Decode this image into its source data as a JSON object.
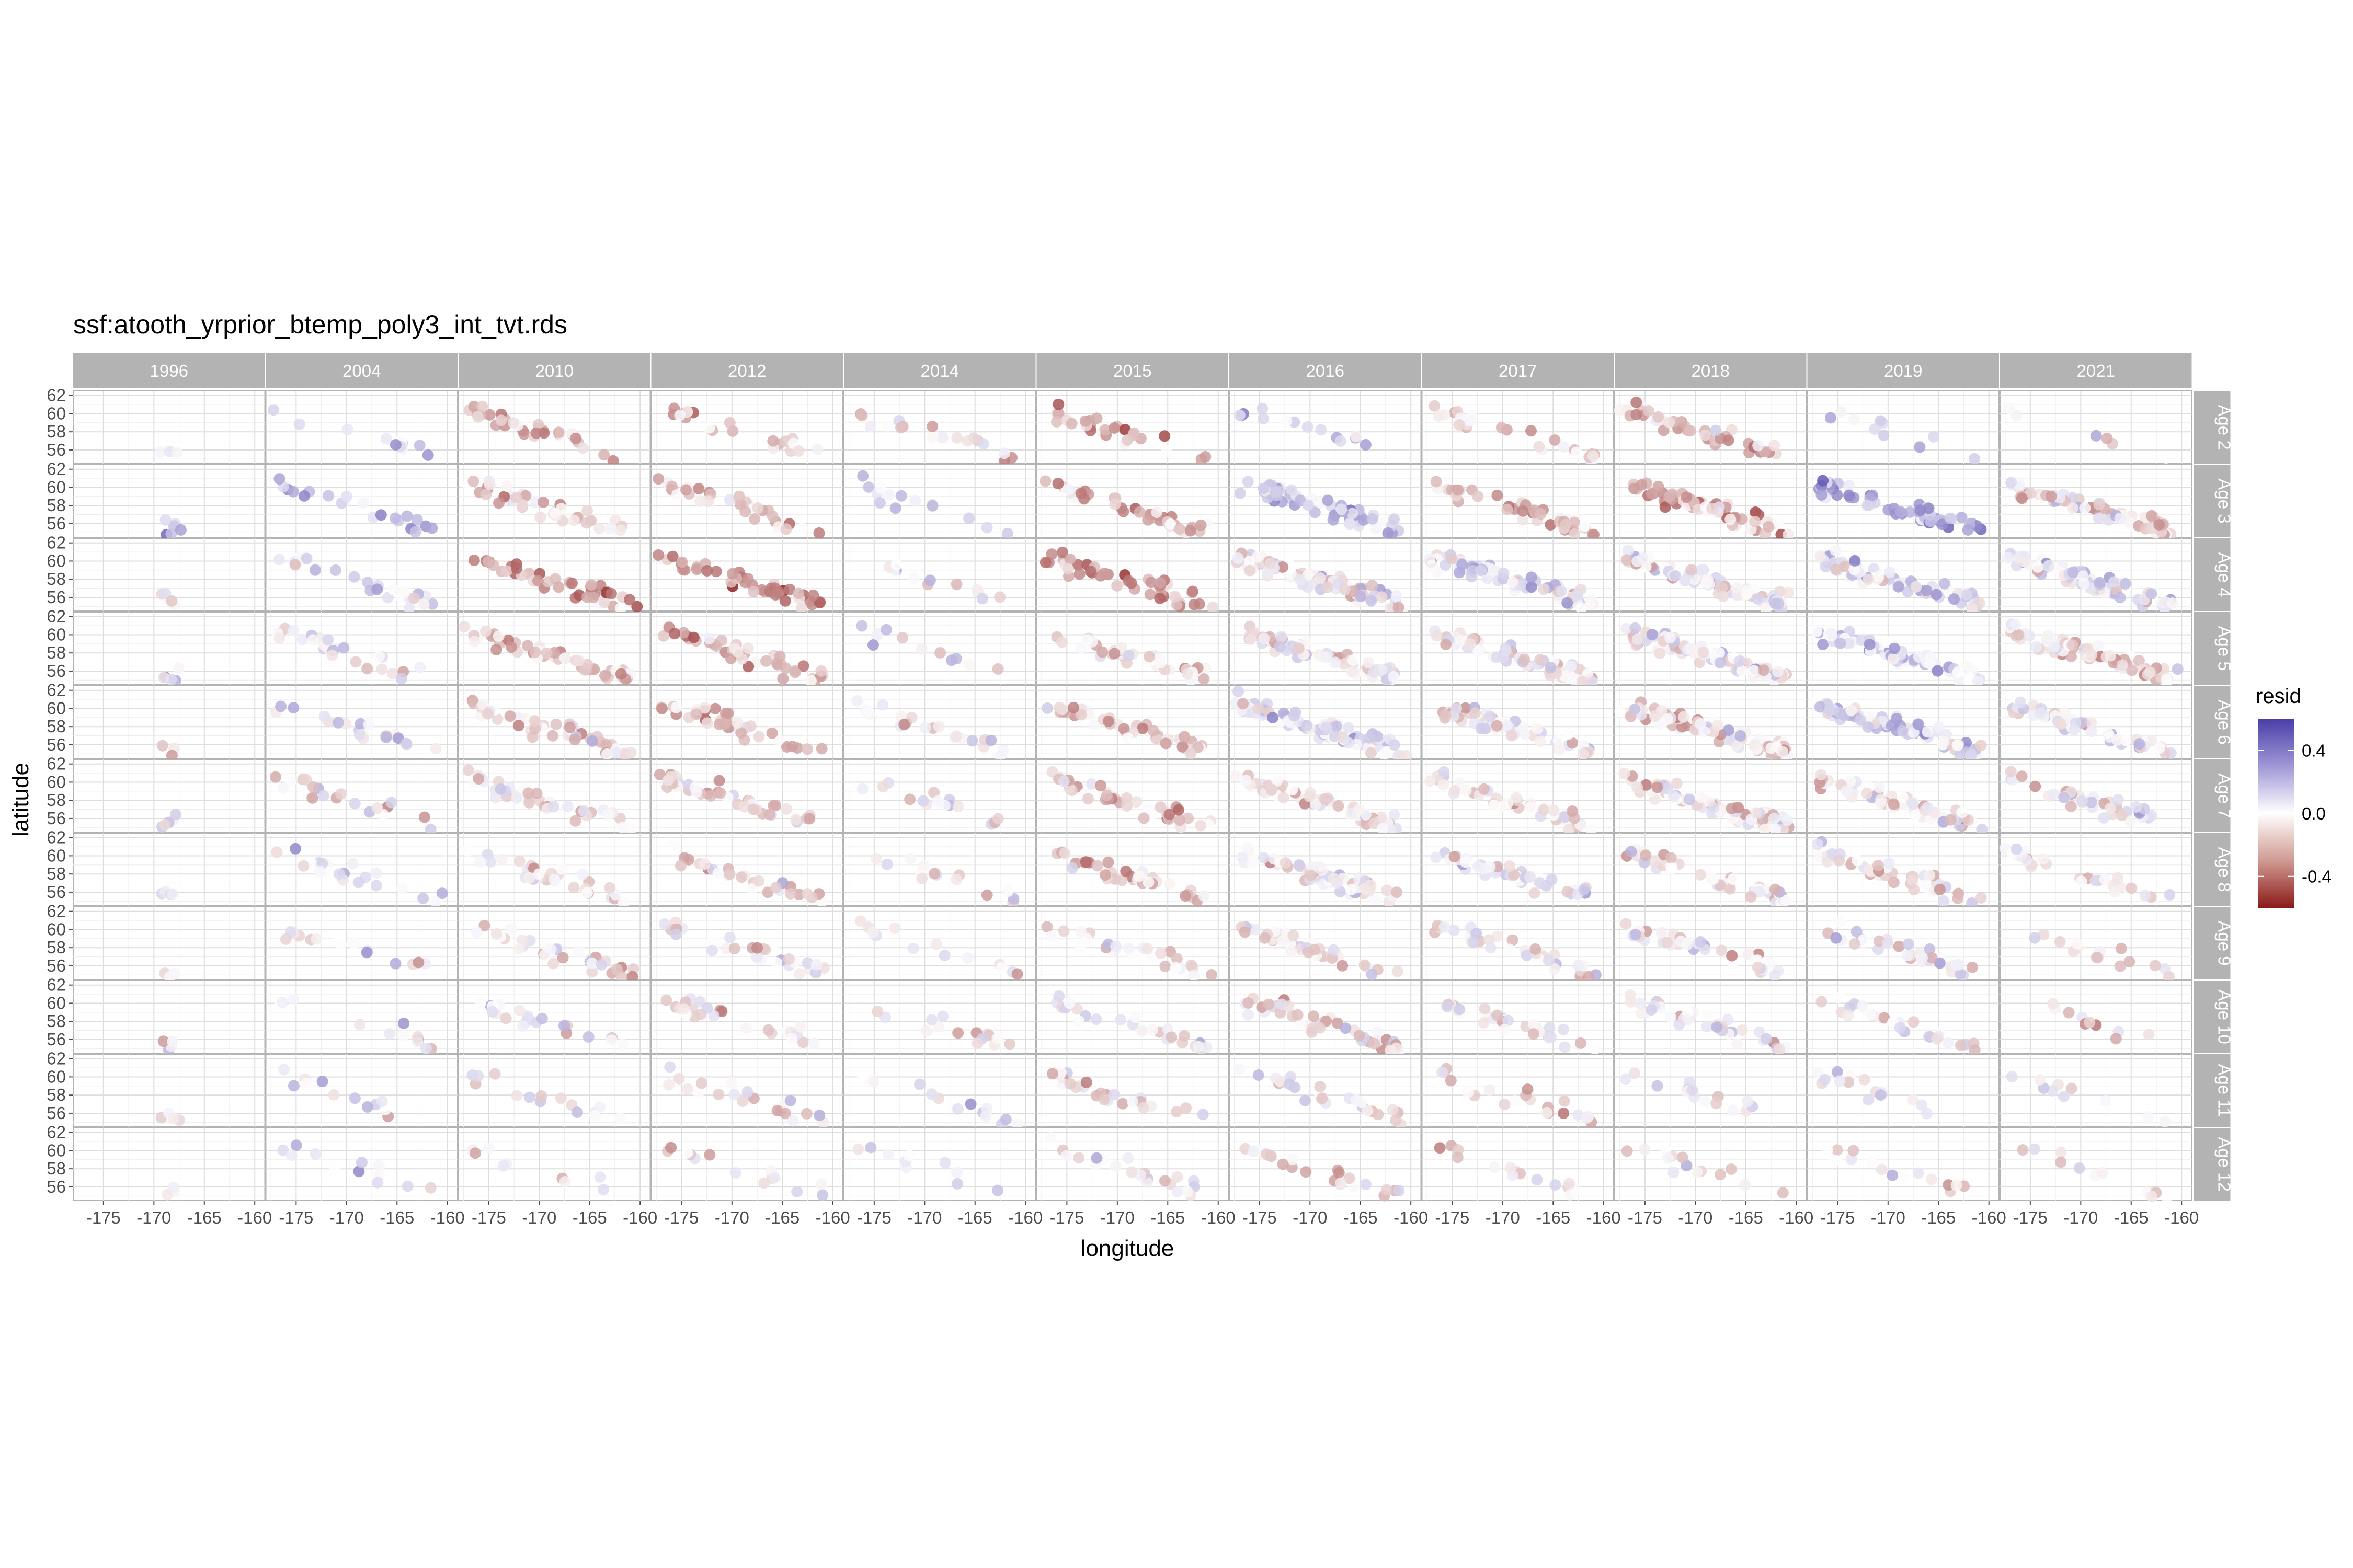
{
  "chart_data": {
    "type": "scatter",
    "title": "ssf:atooth_yrprior_btemp_poly3_int_tvt.rds",
    "xlabel": "longitude",
    "ylabel": "latitude",
    "xlim": [
      -178,
      -159
    ],
    "ylim": [
      54.5,
      62.5
    ],
    "x_ticks": [
      -175,
      -170,
      -165,
      -160
    ],
    "x_tick_labels": [
      "-175",
      "-170",
      "-165",
      "-160"
    ],
    "y_ticks": [
      56,
      58,
      60,
      62
    ],
    "y_tick_labels": [
      "56",
      "58",
      "60",
      "62"
    ],
    "facet_columns": [
      "1996",
      "2004",
      "2010",
      "2012",
      "2014",
      "2015",
      "2016",
      "2017",
      "2018",
      "2019",
      "2021"
    ],
    "facet_rows": [
      "Age 2",
      "Age 3",
      "Age 4",
      "Age 5",
      "Age 6",
      "Age 7",
      "Age 8",
      "Age 9",
      "Age 10",
      "Age 11",
      "Age 12"
    ],
    "color_variable": "resid",
    "color_scale": {
      "low": "#8b1a1a",
      "mid": "#ffffff",
      "high": "#4a3ea8",
      "limits": [
        -0.6,
        0.6
      ],
      "breaks": [
        0.4,
        0.0,
        -0.4
      ],
      "break_labels": [
        "0.4",
        "0.0",
        "-0.4"
      ]
    },
    "grid": true,
    "legend_position": "right",
    "point_density": [
      [
        3,
        12,
        34,
        22,
        18,
        28,
        14,
        26,
        40,
        10,
        6
      ],
      [
        6,
        22,
        40,
        34,
        14,
        40,
        60,
        44,
        70,
        60,
        70
      ],
      [
        5,
        26,
        44,
        46,
        12,
        46,
        90,
        80,
        80,
        70,
        80
      ],
      [
        5,
        26,
        50,
        46,
        12,
        40,
        80,
        70,
        90,
        80,
        80
      ],
      [
        3,
        22,
        50,
        40,
        22,
        46,
        90,
        60,
        90,
        80,
        50
      ],
      [
        5,
        22,
        44,
        40,
        16,
        40,
        60,
        46,
        80,
        60,
        40
      ],
      [
        4,
        22,
        34,
        30,
        14,
        34,
        60,
        46,
        50,
        50,
        26
      ],
      [
        3,
        16,
        34,
        30,
        14,
        28,
        46,
        34,
        40,
        34,
        16
      ],
      [
        5,
        12,
        22,
        26,
        16,
        28,
        46,
        34,
        40,
        26,
        12
      ],
      [
        4,
        12,
        16,
        22,
        14,
        26,
        26,
        22,
        16,
        16,
        10
      ],
      [
        3,
        12,
        10,
        14,
        10,
        22,
        22,
        16,
        14,
        16,
        12
      ]
    ],
    "resid_bias": [
      [
        0.0,
        0.1,
        -0.2,
        -0.2,
        -0.1,
        -0.2,
        0.15,
        -0.1,
        -0.15,
        0.1,
        0.0
      ],
      [
        0.25,
        0.2,
        -0.1,
        -0.15,
        0.1,
        -0.2,
        0.15,
        -0.2,
        -0.2,
        0.25,
        -0.05
      ],
      [
        0.05,
        0.1,
        -0.25,
        -0.3,
        0.0,
        -0.3,
        0.0,
        0.05,
        0.0,
        0.1,
        0.05
      ],
      [
        0.0,
        0.05,
        -0.1,
        -0.2,
        0.05,
        -0.1,
        0.0,
        0.0,
        0.0,
        0.1,
        -0.05
      ],
      [
        0.0,
        0.05,
        -0.05,
        -0.15,
        0.0,
        -0.15,
        0.1,
        0.0,
        -0.05,
        0.1,
        0.05
      ],
      [
        0.05,
        0.0,
        -0.05,
        -0.1,
        0.0,
        -0.15,
        0.0,
        -0.05,
        -0.05,
        -0.05,
        0.05
      ],
      [
        0.0,
        0.05,
        -0.05,
        -0.05,
        -0.05,
        -0.15,
        -0.05,
        0.05,
        -0.05,
        -0.05,
        -0.05
      ],
      [
        0.0,
        0.0,
        -0.05,
        -0.05,
        0.0,
        -0.05,
        -0.05,
        0.0,
        0.0,
        0.0,
        -0.05
      ],
      [
        -0.05,
        0.05,
        0.0,
        -0.05,
        0.0,
        -0.05,
        -0.05,
        0.0,
        0.0,
        0.0,
        -0.05
      ],
      [
        0.0,
        0.05,
        0.0,
        -0.05,
        0.05,
        -0.05,
        -0.05,
        -0.1,
        0.0,
        0.0,
        0.0
      ],
      [
        0.0,
        0.1,
        0.0,
        -0.05,
        0.0,
        0.05,
        -0.1,
        -0.05,
        -0.05,
        -0.05,
        -0.05
      ]
    ]
  }
}
